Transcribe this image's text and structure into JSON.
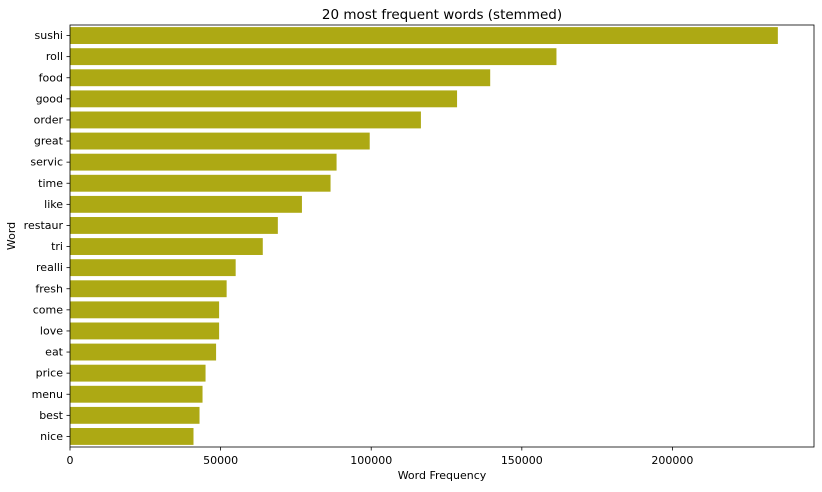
{
  "chart_data": {
    "type": "bar",
    "orientation": "horizontal",
    "title": "20 most frequent words (stemmed)",
    "xlabel": "Word Frequency",
    "ylabel": "Word",
    "categories": [
      "sushi",
      "roll",
      "food",
      "good",
      "order",
      "great",
      "servic",
      "time",
      "like",
      "restaur",
      "tri",
      "realli",
      "fresh",
      "come",
      "love",
      "eat",
      "price",
      "menu",
      "best",
      "nice"
    ],
    "values": [
      235000,
      161500,
      139500,
      128500,
      116500,
      99500,
      88500,
      86500,
      77000,
      69000,
      64000,
      55000,
      52000,
      49500,
      49500,
      48500,
      45000,
      44000,
      43000,
      41000
    ],
    "xticks": [
      0,
      50000,
      100000,
      150000,
      200000
    ],
    "xlim": [
      0,
      247000
    ],
    "bar_color": "#ada914",
    "grid": false,
    "legend": "none"
  }
}
